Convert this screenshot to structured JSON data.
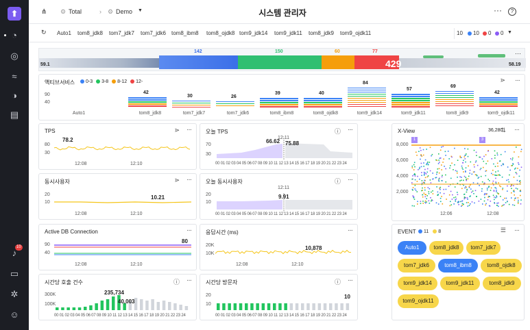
{
  "sidebar": {
    "items": [
      "logo",
      "dashboard",
      "analysis",
      "flow",
      "pie",
      "report",
      "alert",
      "chat",
      "settings",
      "user"
    ],
    "alert_count": "10"
  },
  "topbar": {
    "breadcrumb_root": "Total",
    "breadcrumb_child": "Demo",
    "title": "시스템 관리자"
  },
  "agents": {
    "items": [
      "Auto1",
      "tom8_jdk8",
      "tom7_jdk7",
      "tom7_jdk6",
      "tom8_ibm8",
      "tom8_ojdk8",
      "tom9_jdk14",
      "tom9_jdk11",
      "tom8_jdk9",
      "tom9_ojdk11"
    ],
    "total": "10",
    "blue": "10",
    "red": "0",
    "purple": "0"
  },
  "flow": {
    "left": "59.1",
    "right": "58.19",
    "v1": "142",
    "v2": "150",
    "v3": "60",
    "v4": "77",
    "big": "429"
  },
  "active_service": {
    "title": "액티브서비스",
    "legend": [
      "0-3",
      "3-8",
      "8-12",
      "12-"
    ],
    "legend_colors": [
      "#3b82f6",
      "#22c55e",
      "#f59e0b",
      "#ef4444"
    ],
    "yticks": [
      "90",
      "40"
    ],
    "agents": [
      "Auto1",
      "tom8_jdk8",
      "tom7_jdk7",
      "tom7_jdk6",
      "tom8_ibm8",
      "tom8_ojdk8",
      "tom9_jdk14",
      "tom9_jdk11",
      "tom8_jdk9",
      "tom9_ojdk11"
    ],
    "values": [
      "",
      "42",
      "30",
      "26",
      "39",
      "40",
      "84",
      "57",
      "69",
      "42"
    ]
  },
  "tps": {
    "title": "TPS",
    "value": "78.2",
    "yticks": [
      "80",
      "30"
    ],
    "xticks": [
      "12:08",
      "12:10"
    ]
  },
  "today_tps": {
    "title": "오늘 TPS",
    "time": "12:11",
    "v1": "66.62",
    "v2": "75.88",
    "yticks": [
      "70",
      "30"
    ],
    "xticks": "00 01 02 03 04 05 06 07 08 09 10 11 12 13 14 15 16 17 18 19 20 21 22 23 24"
  },
  "xview": {
    "title": "X-View",
    "count": "36,280",
    "yticks": [
      "8,000",
      "6,000",
      "4,000",
      "2,000"
    ],
    "xticks": [
      "12:06",
      "12:08"
    ],
    "marker1": "1",
    "marker2": "3"
  },
  "concurrent": {
    "title": "동시사용자",
    "value": "10.21",
    "yticks": [
      "20",
      "10"
    ],
    "xticks": [
      "12:08",
      "12:10"
    ]
  },
  "today_concurrent": {
    "title": "오늘 동시사용자",
    "time": "12:11",
    "value": "9.91",
    "yticks": [
      "20",
      "10"
    ],
    "xticks": "00 01 02 03 04 05 06 07 08 09 10 11 12 13 14 15 16 17 18 19 20 21 22 23 24"
  },
  "active_db": {
    "title": "Active DB Connection",
    "value": "80",
    "yticks": [
      "90",
      "40"
    ],
    "xticks": [
      "12:08",
      "12:10"
    ]
  },
  "response": {
    "title": "응답시간 (ms)",
    "value": "10,878",
    "yticks": [
      "20K",
      "10K"
    ],
    "xticks": [
      "12:08",
      "12:10"
    ]
  },
  "event": {
    "title": "EVENT",
    "blue_count": "11",
    "yellow_count": "8",
    "pills": [
      "Auto1",
      "tom8_jdk8",
      "tom7_jdk7",
      "tom7_jdk6",
      "tom8_ibm8",
      "tom8_ojdk8",
      "tom9_jdk14",
      "tom9_jdk11",
      "tom8_jdk9",
      "tom9_ojdk11"
    ]
  },
  "hourly_calls": {
    "title": "시간당 호출 건수",
    "v1": "235,734",
    "v2": "40,003",
    "yticks": [
      "300K",
      "100K"
    ],
    "xticks": "00 01 02 03 04 05 06 07 08 09 10 11 12 13 14 15 16 17 18 19 20 21 22 23 24"
  },
  "hourly_visitors": {
    "title": "시간당 방문자",
    "value": "10",
    "yticks": [
      "20",
      "10"
    ],
    "xticks": "00 01 02 03 04 05 06 07 08 09 10 11 12 13 14 15 16 17 18 19 20 21 22 23 24"
  }
}
